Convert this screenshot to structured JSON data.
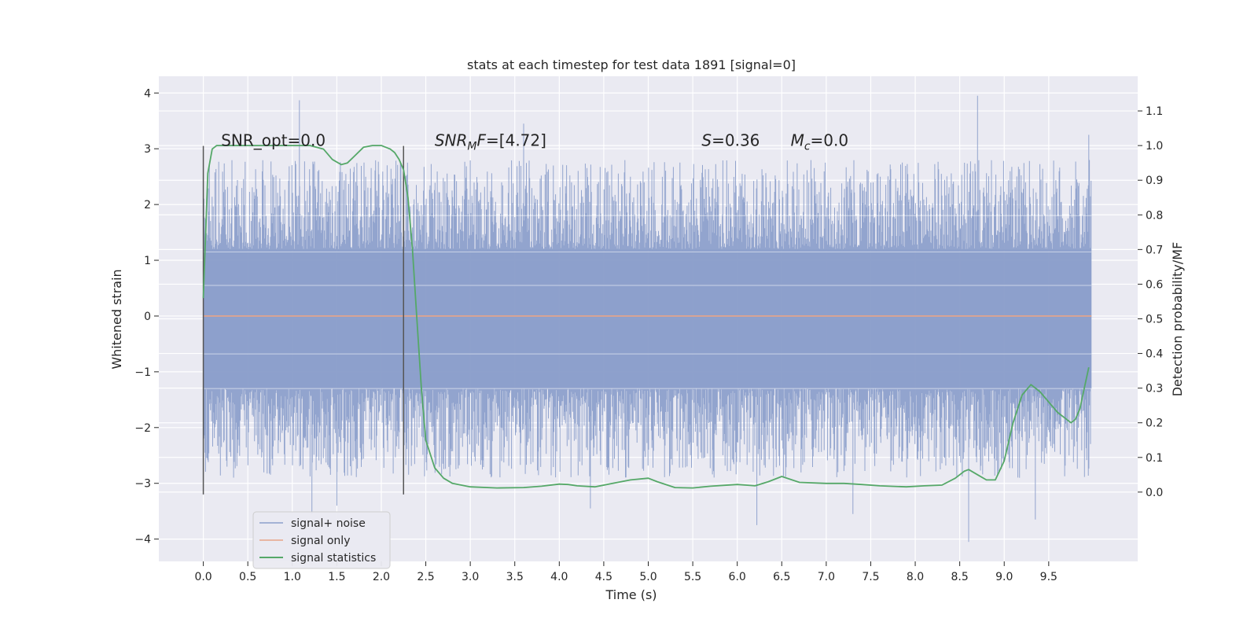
{
  "chart_data": {
    "type": "line",
    "title": "stats at each timestep for test data 1891 [signal=0]",
    "xlabel": "Time (s)",
    "ylabel": "Whitened strain",
    "y2label": "Detection probability/MF",
    "xlim": [
      -0.5,
      10.5
    ],
    "ylim": [
      -4.4,
      4.3
    ],
    "y2lim": [
      -0.2,
      1.2
    ],
    "x_ticks": [
      0.0,
      0.5,
      1.0,
      1.5,
      2.0,
      2.5,
      3.0,
      3.5,
      4.0,
      4.5,
      5.0,
      5.5,
      6.0,
      6.5,
      7.0,
      7.5,
      8.0,
      8.5,
      9.0,
      9.5
    ],
    "x_tick_labels": [
      "0.0",
      "0.5",
      "1.0",
      "1.5",
      "2.0",
      "2.5",
      "3.0",
      "3.5",
      "4.0",
      "4.5",
      "5.0",
      "5.5",
      "6.0",
      "6.5",
      "7.0",
      "7.5",
      "8.0",
      "8.5",
      "9.0",
      "9.5"
    ],
    "y_ticks": [
      4,
      3,
      2,
      1,
      0,
      -1,
      -2,
      -3,
      -4
    ],
    "y_tick_labels": [
      "4",
      "3",
      "2",
      "1",
      "0",
      "−1",
      "−2",
      "−3",
      "−4"
    ],
    "y2_ticks": [
      1.1,
      1.0,
      0.9,
      0.8,
      0.7,
      0.6,
      0.5,
      0.4,
      0.3,
      0.2,
      0.1,
      0.0
    ],
    "y2_tick_labels": [
      "1.1",
      "1.0",
      "0.9",
      "0.8",
      "0.7",
      "0.6",
      "0.5",
      "0.4",
      "0.3",
      "0.2",
      "0.1",
      "0.0"
    ],
    "grid": true,
    "legend_position": "lower-left",
    "series": [
      {
        "name": "signal+ noise",
        "color": "#8da0cb",
        "axis": "left",
        "kind": "noise",
        "x_range": [
          0.0,
          9.98
        ],
        "envelope": [
          1.2,
          -1.3
        ],
        "peak_envelope": [
          2.8,
          -2.9
        ],
        "extreme_spikes": [
          {
            "x": 1.08,
            "y": 3.87
          },
          {
            "x": 1.22,
            "y": -3.55
          },
          {
            "x": 1.5,
            "y": -3.4
          },
          {
            "x": 3.6,
            "y": 3.45
          },
          {
            "x": 4.35,
            "y": -3.45
          },
          {
            "x": 6.22,
            "y": -3.75
          },
          {
            "x": 7.3,
            "y": -3.55
          },
          {
            "x": 8.6,
            "y": -4.05
          },
          {
            "x": 8.7,
            "y": 3.95
          },
          {
            "x": 9.35,
            "y": -3.65
          },
          {
            "x": 9.95,
            "y": 3.25
          }
        ]
      },
      {
        "name": "signal only",
        "color": "#e8a488",
        "axis": "left",
        "x": [
          0.0,
          9.98
        ],
        "y": [
          0.0,
          0.0
        ]
      },
      {
        "name": "signal statistics",
        "color": "#55a868",
        "axis": "right",
        "x": [
          0.0,
          0.05,
          0.1,
          0.15,
          0.2,
          0.35,
          0.6,
          0.9,
          1.2,
          1.35,
          1.45,
          1.55,
          1.62,
          1.7,
          1.8,
          1.9,
          2.0,
          2.1,
          2.15,
          2.2,
          2.25,
          2.3,
          2.35,
          2.4,
          2.45,
          2.5,
          2.6,
          2.7,
          2.8,
          3.0,
          3.3,
          3.6,
          3.8,
          4.0,
          4.1,
          4.2,
          4.4,
          4.6,
          4.8,
          5.0,
          5.1,
          5.3,
          5.5,
          5.7,
          6.0,
          6.1,
          6.2,
          6.35,
          6.5,
          6.7,
          7.0,
          7.2,
          7.4,
          7.6,
          7.9,
          8.1,
          8.3,
          8.45,
          8.55,
          8.6,
          8.7,
          8.8,
          8.9,
          9.0,
          9.1,
          9.2,
          9.3,
          9.4,
          9.5,
          9.6,
          9.7,
          9.75,
          9.8,
          9.85,
          9.9,
          9.95
        ],
        "y": [
          0.56,
          0.92,
          0.99,
          1.0,
          1.0,
          1.0,
          1.0,
          1.0,
          1.0,
          0.99,
          0.96,
          0.945,
          0.95,
          0.97,
          0.995,
          1.0,
          1.0,
          0.99,
          0.98,
          0.96,
          0.93,
          0.85,
          0.7,
          0.5,
          0.3,
          0.15,
          0.07,
          0.04,
          0.025,
          0.015,
          0.012,
          0.013,
          0.017,
          0.023,
          0.022,
          0.018,
          0.015,
          0.025,
          0.035,
          0.04,
          0.03,
          0.013,
          0.012,
          0.017,
          0.022,
          0.02,
          0.018,
          0.03,
          0.045,
          0.028,
          0.025,
          0.025,
          0.022,
          0.018,
          0.015,
          0.018,
          0.02,
          0.04,
          0.06,
          0.065,
          0.05,
          0.035,
          0.035,
          0.09,
          0.2,
          0.28,
          0.31,
          0.29,
          0.26,
          0.23,
          0.21,
          0.2,
          0.21,
          0.24,
          0.3,
          0.36
        ]
      }
    ],
    "vlines": [
      {
        "x": 0.0,
        "y": [
          -3.2,
          3.05
        ],
        "color": "#555555"
      },
      {
        "x": 2.25,
        "y": [
          -3.2,
          3.05
        ],
        "color": "#555555"
      }
    ],
    "annotations": [
      {
        "segments": [
          {
            "t": "SNR_opt=0.0"
          }
        ],
        "x": 0.2,
        "y": 3.05
      },
      {
        "segments": [
          {
            "t": "SNR",
            "i": true
          },
          {
            "t": "M",
            "i": true,
            "sub": true
          },
          {
            "t": "F",
            "i": true
          },
          {
            "t": "=[4.72]"
          }
        ],
        "x": 2.6,
        "y": 3.05
      },
      {
        "segments": [
          {
            "t": "S",
            "i": true
          },
          {
            "t": "=0.36"
          }
        ],
        "x": 5.6,
        "y": 3.05
      },
      {
        "segments": [
          {
            "t": "M",
            "i": true
          },
          {
            "t": "c",
            "i": true,
            "sub": true
          },
          {
            "t": "=0.0"
          }
        ],
        "x": 6.6,
        "y": 3.05
      }
    ]
  }
}
